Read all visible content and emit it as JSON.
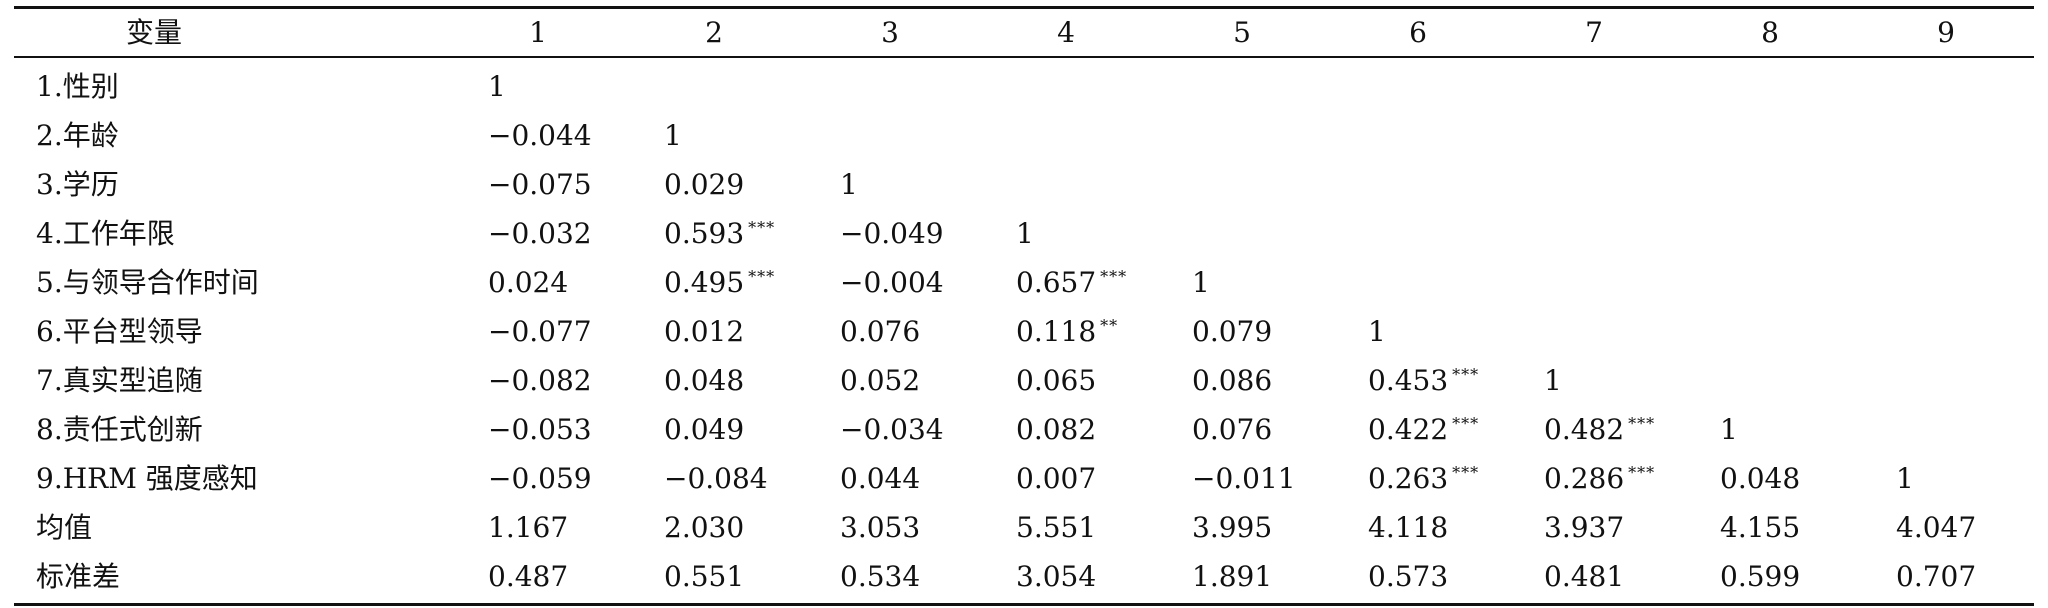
{
  "table": {
    "headers": [
      "变量",
      "1",
      "2",
      "3",
      "4",
      "5",
      "6",
      "7",
      "8",
      "9"
    ],
    "rows": [
      {
        "label": "1.性别",
        "cells": [
          {
            "v": "1",
            "s": ""
          }
        ]
      },
      {
        "label": "2.年龄",
        "cells": [
          {
            "v": "−0.044",
            "s": ""
          },
          {
            "v": "1",
            "s": ""
          }
        ]
      },
      {
        "label": "3.学历",
        "cells": [
          {
            "v": "−0.075",
            "s": ""
          },
          {
            "v": "0.029",
            "s": ""
          },
          {
            "v": "1",
            "s": ""
          }
        ]
      },
      {
        "label": "4.工作年限",
        "cells": [
          {
            "v": "−0.032",
            "s": ""
          },
          {
            "v": "0.593",
            "s": "***"
          },
          {
            "v": "−0.049",
            "s": ""
          },
          {
            "v": "1",
            "s": ""
          }
        ]
      },
      {
        "label": "5.与领导合作时间",
        "cells": [
          {
            "v": "0.024",
            "s": ""
          },
          {
            "v": "0.495",
            "s": "***"
          },
          {
            "v": "−0.004",
            "s": ""
          },
          {
            "v": "0.657",
            "s": "***"
          },
          {
            "v": "1",
            "s": ""
          }
        ]
      },
      {
        "label": "6.平台型领导",
        "cells": [
          {
            "v": "−0.077",
            "s": ""
          },
          {
            "v": "0.012",
            "s": ""
          },
          {
            "v": "0.076",
            "s": ""
          },
          {
            "v": "0.118",
            "s": "**"
          },
          {
            "v": "0.079",
            "s": ""
          },
          {
            "v": "1",
            "s": ""
          }
        ]
      },
      {
        "label": "7.真实型追随",
        "cells": [
          {
            "v": "−0.082",
            "s": ""
          },
          {
            "v": "0.048",
            "s": ""
          },
          {
            "v": "0.052",
            "s": ""
          },
          {
            "v": "0.065",
            "s": ""
          },
          {
            "v": "0.086",
            "s": ""
          },
          {
            "v": "0.453",
            "s": "***"
          },
          {
            "v": "1",
            "s": ""
          }
        ]
      },
      {
        "label": "8.责任式创新",
        "cells": [
          {
            "v": "−0.053",
            "s": ""
          },
          {
            "v": "0.049",
            "s": ""
          },
          {
            "v": "−0.034",
            "s": ""
          },
          {
            "v": "0.082",
            "s": ""
          },
          {
            "v": "0.076",
            "s": ""
          },
          {
            "v": "0.422",
            "s": "***"
          },
          {
            "v": "0.482",
            "s": "***"
          },
          {
            "v": "1",
            "s": ""
          }
        ]
      },
      {
        "label": "9.HRM 强度感知",
        "cells": [
          {
            "v": "−0.059",
            "s": ""
          },
          {
            "v": "−0.084",
            "s": ""
          },
          {
            "v": "0.044",
            "s": ""
          },
          {
            "v": "0.007",
            "s": ""
          },
          {
            "v": "−0.011",
            "s": ""
          },
          {
            "v": "0.263",
            "s": "***"
          },
          {
            "v": "0.286",
            "s": "***"
          },
          {
            "v": "0.048",
            "s": ""
          },
          {
            "v": "1",
            "s": ""
          }
        ]
      },
      {
        "label": "均值",
        "cells": [
          {
            "v": "1.167",
            "s": ""
          },
          {
            "v": "2.030",
            "s": ""
          },
          {
            "v": "3.053",
            "s": ""
          },
          {
            "v": "5.551",
            "s": ""
          },
          {
            "v": "3.995",
            "s": ""
          },
          {
            "v": "4.118",
            "s": ""
          },
          {
            "v": "3.937",
            "s": ""
          },
          {
            "v": "4.155",
            "s": ""
          },
          {
            "v": "4.047",
            "s": ""
          }
        ]
      },
      {
        "label": "标准差",
        "cells": [
          {
            "v": "0.487",
            "s": ""
          },
          {
            "v": "0.551",
            "s": ""
          },
          {
            "v": "0.534",
            "s": ""
          },
          {
            "v": "3.054",
            "s": ""
          },
          {
            "v": "1.891",
            "s": ""
          },
          {
            "v": "0.573",
            "s": ""
          },
          {
            "v": "0.481",
            "s": ""
          },
          {
            "v": "0.599",
            "s": ""
          },
          {
            "v": "0.707",
            "s": ""
          }
        ]
      }
    ]
  }
}
